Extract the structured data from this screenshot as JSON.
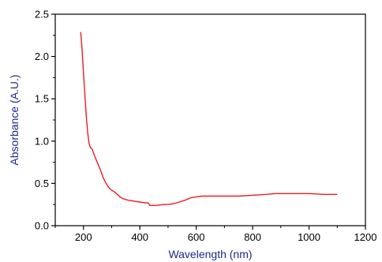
{
  "chart_data": {
    "type": "line",
    "xlabel": "Wavelength (nm)",
    "ylabel": "Absorbance (A.U.)",
    "xlim": [
      100,
      1200
    ],
    "ylim": [
      0.0,
      2.5
    ],
    "x_ticks": [
      200,
      400,
      600,
      800,
      1000,
      1200
    ],
    "x_tick_labels": [
      "200",
      "400",
      "600",
      "800",
      "1000",
      "1200"
    ],
    "y_ticks": [
      0.0,
      0.5,
      1.0,
      1.5,
      2.0,
      2.5
    ],
    "y_tick_labels": [
      "0.0",
      "0.5",
      "1.0",
      "1.5",
      "2.0",
      "2.5"
    ],
    "grid": false,
    "series": [
      {
        "color": "#ee1c24",
        "x": [
          190,
          195,
          200,
          205,
          210,
          215,
          220,
          225,
          230,
          240,
          250,
          260,
          270,
          280,
          290,
          300,
          310,
          320,
          330,
          340,
          360,
          380,
          400,
          420,
          430,
          435,
          440,
          460,
          480,
          500,
          520,
          540,
          560,
          580,
          600,
          620,
          650,
          700,
          750,
          800,
          850,
          880,
          900,
          950,
          1000,
          1050,
          1100
        ],
        "y": [
          2.29,
          2.1,
          1.82,
          1.55,
          1.3,
          1.1,
          0.97,
          0.92,
          0.91,
          0.82,
          0.74,
          0.66,
          0.57,
          0.5,
          0.45,
          0.42,
          0.4,
          0.37,
          0.34,
          0.32,
          0.3,
          0.29,
          0.28,
          0.27,
          0.27,
          0.24,
          0.24,
          0.24,
          0.25,
          0.25,
          0.26,
          0.28,
          0.3,
          0.33,
          0.34,
          0.35,
          0.35,
          0.35,
          0.35,
          0.36,
          0.37,
          0.38,
          0.38,
          0.38,
          0.38,
          0.37,
          0.37
        ]
      }
    ]
  },
  "colors": {
    "axis": "#000000",
    "axis_title": "#1f2a8c",
    "line": "#ee1c24"
  }
}
